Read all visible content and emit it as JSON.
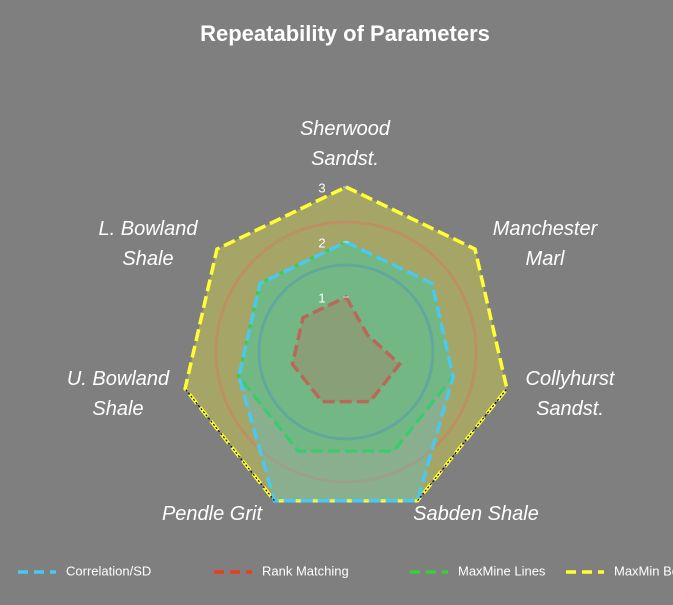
{
  "chart_data": {
    "type": "radar",
    "title": "Repeatability of Parameters",
    "categories": [
      [
        "Sherwood",
        "Sandst."
      ],
      [
        "Manchester",
        "Marl"
      ],
      [
        "Collyhurst",
        "Sandst."
      ],
      [
        "Sabden Shale"
      ],
      [
        "Pendle Grit"
      ],
      [
        "U. Bowland",
        "Shale"
      ],
      [
        "L. Bowland",
        "Shale"
      ]
    ],
    "rlim": [
      0,
      3
    ],
    "rticks": [
      1,
      2,
      3
    ],
    "legend": "bottom",
    "series": [
      {
        "name": "Correlation/SD",
        "color": "#4dc8ec",
        "values": [
          2,
          2,
          2,
          3,
          3,
          2,
          2
        ]
      },
      {
        "name": "Rank Matching",
        "color": "#e8401c",
        "values": [
          1,
          0.5,
          1,
          1,
          1,
          1,
          1
        ]
      },
      {
        "name": "MaxMine Lines",
        "color": "#3ccc3c",
        "values": [
          2,
          2,
          2,
          2,
          2,
          2,
          2
        ]
      },
      {
        "name": "MaxMin Boxes",
        "color": "#ffff33",
        "values": [
          3,
          3,
          3,
          3,
          3,
          3,
          3
        ]
      }
    ]
  }
}
